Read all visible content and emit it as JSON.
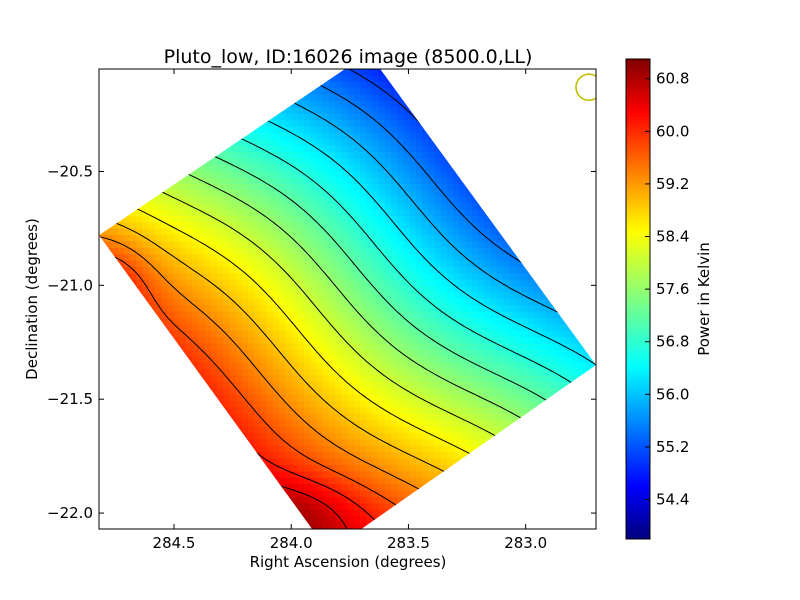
{
  "chart_data": {
    "type": "heatmap",
    "title": "Pluto_low, ID:16026 image (8500.0,LL)",
    "xlabel": "Right Ascension (degrees)",
    "ylabel": "Declination (degrees)",
    "xlim": [
      284.82,
      282.7
    ],
    "ylim": [
      -22.07,
      -20.05
    ],
    "x_ticks": [
      "284.5",
      "284.0",
      "283.5",
      "283.0"
    ],
    "x_tick_values": [
      284.5,
      284.0,
      283.5,
      283.0
    ],
    "y_ticks": [
      "−20.5",
      "−21.0",
      "−21.5",
      "−22.0"
    ],
    "y_tick_values": [
      -20.5,
      -21.0,
      -21.5,
      -22.0
    ],
    "colorbar": {
      "label": "Power in Kelvin",
      "range": [
        53.8,
        61.1
      ],
      "ticks": [
        "60.8",
        "60.0",
        "59.2",
        "58.4",
        "57.6",
        "56.8",
        "56.0",
        "55.2",
        "54.4"
      ],
      "tick_values": [
        60.8,
        60.0,
        59.2,
        58.4,
        57.6,
        56.8,
        56.0,
        55.2,
        54.4
      ]
    },
    "map_footprint_corners": [
      {
        "ra": 284.82,
        "dec": -20.78
      },
      {
        "ra": 283.67,
        "dec": -19.98
      },
      {
        "ra": 282.7,
        "dec": -21.35
      },
      {
        "ra": 283.84,
        "dec": -22.17
      }
    ],
    "gradient_trend": {
      "direction": "power increases toward lower declination and higher right ascension",
      "max_region": {
        "ra": 284.79,
        "dec": -21.0,
        "value": 60.9
      },
      "secondary_max_region": {
        "ra": 284.0,
        "dec": -22.0,
        "value": 60.9
      },
      "min_region": {
        "ra": 282.9,
        "dec": -20.3,
        "value": 54.0
      }
    },
    "contour_levels": [
      54.4,
      54.8,
      55.2,
      55.6,
      56.0,
      56.4,
      56.8,
      57.2,
      57.6,
      58.0,
      58.4,
      58.8,
      59.2,
      59.6,
      60.0,
      60.4
    ],
    "beam_marker": {
      "ra": 282.73,
      "dec": -20.13,
      "color": "#bfbf00",
      "shape": "circle"
    },
    "colormap": "jet",
    "grid": false
  }
}
